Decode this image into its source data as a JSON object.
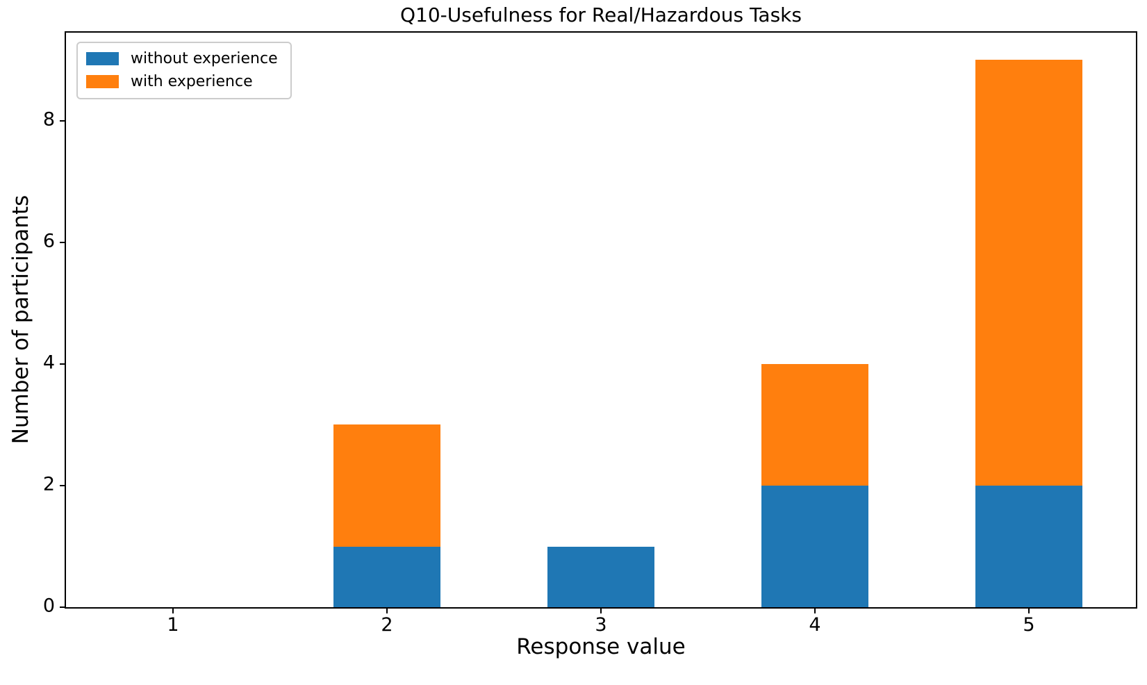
{
  "figure": {
    "background": "#ffffff",
    "axis_color": "#000000",
    "text_color": "#000000"
  },
  "chart_data": {
    "type": "bar",
    "stacked": true,
    "title": "Q10-Usefulness for Real/Hazardous Tasks",
    "xlabel": "Response value",
    "ylabel": "Number of participants",
    "categories": [
      "1",
      "2",
      "3",
      "4",
      "5"
    ],
    "x": [
      1,
      2,
      3,
      4,
      5
    ],
    "series": [
      {
        "name": "without experience",
        "color": "#1f77b4",
        "values": [
          0,
          1,
          1,
          2,
          2
        ]
      },
      {
        "name": "with experience",
        "color": "#ff7f0e",
        "values": [
          0,
          2,
          0,
          2,
          7
        ]
      }
    ],
    "stack_totals": [
      0,
      3,
      1,
      4,
      9
    ],
    "bar_width": 0.5,
    "xlim": [
      0.5,
      5.5
    ],
    "ylim": [
      0,
      9.45
    ],
    "yticks": [
      0,
      2,
      4,
      6,
      8
    ],
    "xticks": [
      1,
      2,
      3,
      4,
      5
    ],
    "grid": false,
    "legend_position": "upper left",
    "legend_border_color": "#cccccc"
  }
}
